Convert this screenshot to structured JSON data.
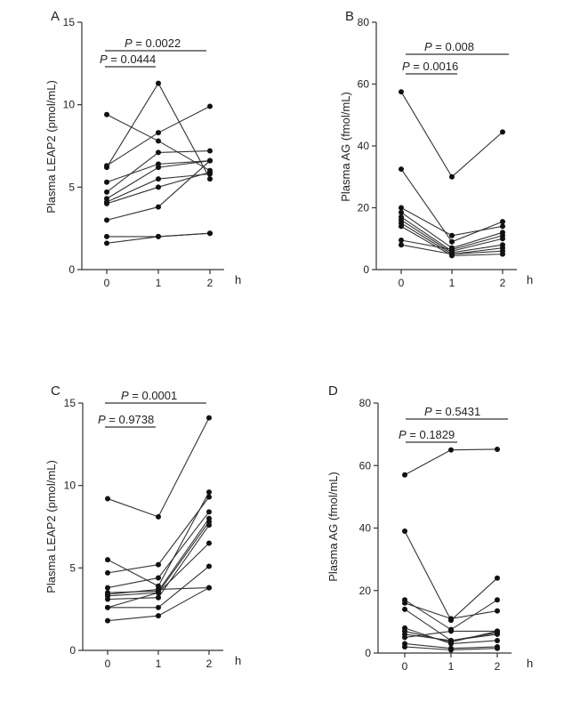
{
  "chart_data": [
    {
      "panel": "A",
      "type": "line",
      "ylabel": "Plasma LEAP2 (pmol/mL)",
      "xlabel": "h",
      "x": [
        0,
        1,
        2
      ],
      "xticks": [
        "0",
        "1",
        "2"
      ],
      "ylim": [
        0,
        15
      ],
      "yticks": [
        "0",
        "5",
        "10",
        "15"
      ],
      "comparisons": [
        {
          "label": "P = 0.0022",
          "from": 0,
          "to": 2,
          "p_prefix": "P",
          "p_value": "= 0.0022"
        },
        {
          "label": "P = 0.0444",
          "from": 0,
          "to": 1,
          "p_prefix": "P",
          "p_value": "= 0.0444"
        }
      ],
      "series": [
        [
          9.4,
          7.8,
          6.0
        ],
        [
          6.3,
          8.3,
          9.9
        ],
        [
          6.2,
          11.3,
          5.5
        ],
        [
          5.3,
          6.4,
          6.6
        ],
        [
          4.7,
          7.1,
          7.2
        ],
        [
          4.3,
          6.2,
          6.6
        ],
        [
          4.1,
          5.5,
          5.8
        ],
        [
          4.0,
          5.0,
          5.9
        ],
        [
          3.0,
          3.8,
          6.6
        ],
        [
          2.0,
          2.0,
          2.2
        ],
        [
          1.6,
          2.0,
          2.2
        ]
      ]
    },
    {
      "panel": "B",
      "type": "line",
      "ylabel": "Plasma AG (fmol/mL)",
      "xlabel": "h",
      "x": [
        0,
        1,
        2
      ],
      "xticks": [
        "0",
        "1",
        "2"
      ],
      "ylim": [
        0,
        80
      ],
      "yticks": [
        "0",
        "20",
        "40",
        "60",
        "80"
      ],
      "comparisons": [
        {
          "label": "P = 0.008",
          "from": 0,
          "to": 2,
          "p_prefix": "P",
          "p_value": "= 0.008"
        },
        {
          "label": "P = 0.0016",
          "from": 0,
          "to": 1,
          "p_prefix": "P",
          "p_value": "= 0.0016"
        }
      ],
      "series": [
        [
          57.5,
          30.0,
          44.5
        ],
        [
          32.5,
          9.0,
          15.5
        ],
        [
          20.0,
          11.0,
          14.0
        ],
        [
          18.5,
          7.0,
          12.0
        ],
        [
          17.0,
          6.0,
          10.0
        ],
        [
          16.0,
          5.5,
          8.0
        ],
        [
          15.0,
          5.0,
          7.0
        ],
        [
          9.5,
          6.5,
          11.0
        ],
        [
          8.0,
          5.0,
          6.0
        ],
        [
          14.0,
          4.5,
          5.0
        ]
      ]
    },
    {
      "panel": "C",
      "type": "line",
      "ylabel": "Plasma LEAP2 (pmol/mL)",
      "xlabel": "h",
      "x": [
        0,
        1,
        2
      ],
      "xticks": [
        "0",
        "1",
        "2"
      ],
      "ylim": [
        0,
        15
      ],
      "yticks": [
        "0",
        "5",
        "10",
        "15"
      ],
      "comparisons": [
        {
          "label": "P = 0.0001",
          "from": 0,
          "to": 2,
          "p_prefix": "P",
          "p_value": "= 0.0001"
        },
        {
          "label": "P = 0.9738",
          "from": 0,
          "to": 1,
          "p_prefix": "P",
          "p_value": "= 0.9738"
        }
      ],
      "series": [
        [
          9.2,
          8.1,
          14.1
        ],
        [
          5.5,
          3.9,
          9.6
        ],
        [
          4.7,
          5.2,
          9.3
        ],
        [
          3.8,
          4.4,
          8.4
        ],
        [
          3.5,
          3.6,
          8.0
        ],
        [
          3.3,
          3.5,
          7.8
        ],
        [
          3.1,
          3.2,
          7.6
        ],
        [
          2.6,
          3.5,
          6.5
        ],
        [
          2.6,
          2.6,
          5.1
        ],
        [
          1.8,
          2.1,
          3.8
        ],
        [
          3.4,
          3.7,
          3.8
        ]
      ]
    },
    {
      "panel": "D",
      "type": "line",
      "ylabel": "Plasma AG (fmol/mL)",
      "xlabel": "h",
      "x": [
        0,
        1,
        2
      ],
      "xticks": [
        "0",
        "1",
        "2"
      ],
      "ylim": [
        0,
        80
      ],
      "yticks": [
        "0",
        "20",
        "40",
        "60",
        "80"
      ],
      "comparisons": [
        {
          "label": "P = 0.5431",
          "from": 0,
          "to": 2,
          "p_prefix": "P",
          "p_value": "= 0.5431"
        },
        {
          "label": "P = 0.1829",
          "from": 0,
          "to": 1,
          "p_prefix": "P",
          "p_value": "= 0.1829"
        }
      ],
      "series": [
        [
          57.0,
          65.0,
          65.2
        ],
        [
          39.0,
          10.5,
          24.0
        ],
        [
          17.0,
          7.5,
          17.0
        ],
        [
          16.0,
          11.0,
          13.5
        ],
        [
          14.0,
          4.0,
          6.5
        ],
        [
          8.0,
          3.0,
          4.0
        ],
        [
          7.0,
          3.5,
          7.0
        ],
        [
          6.0,
          4.0,
          6.0
        ],
        [
          3.0,
          1.5,
          2.0
        ],
        [
          2.0,
          1.0,
          1.5
        ],
        [
          5.0,
          7.0,
          7.0
        ]
      ]
    }
  ]
}
